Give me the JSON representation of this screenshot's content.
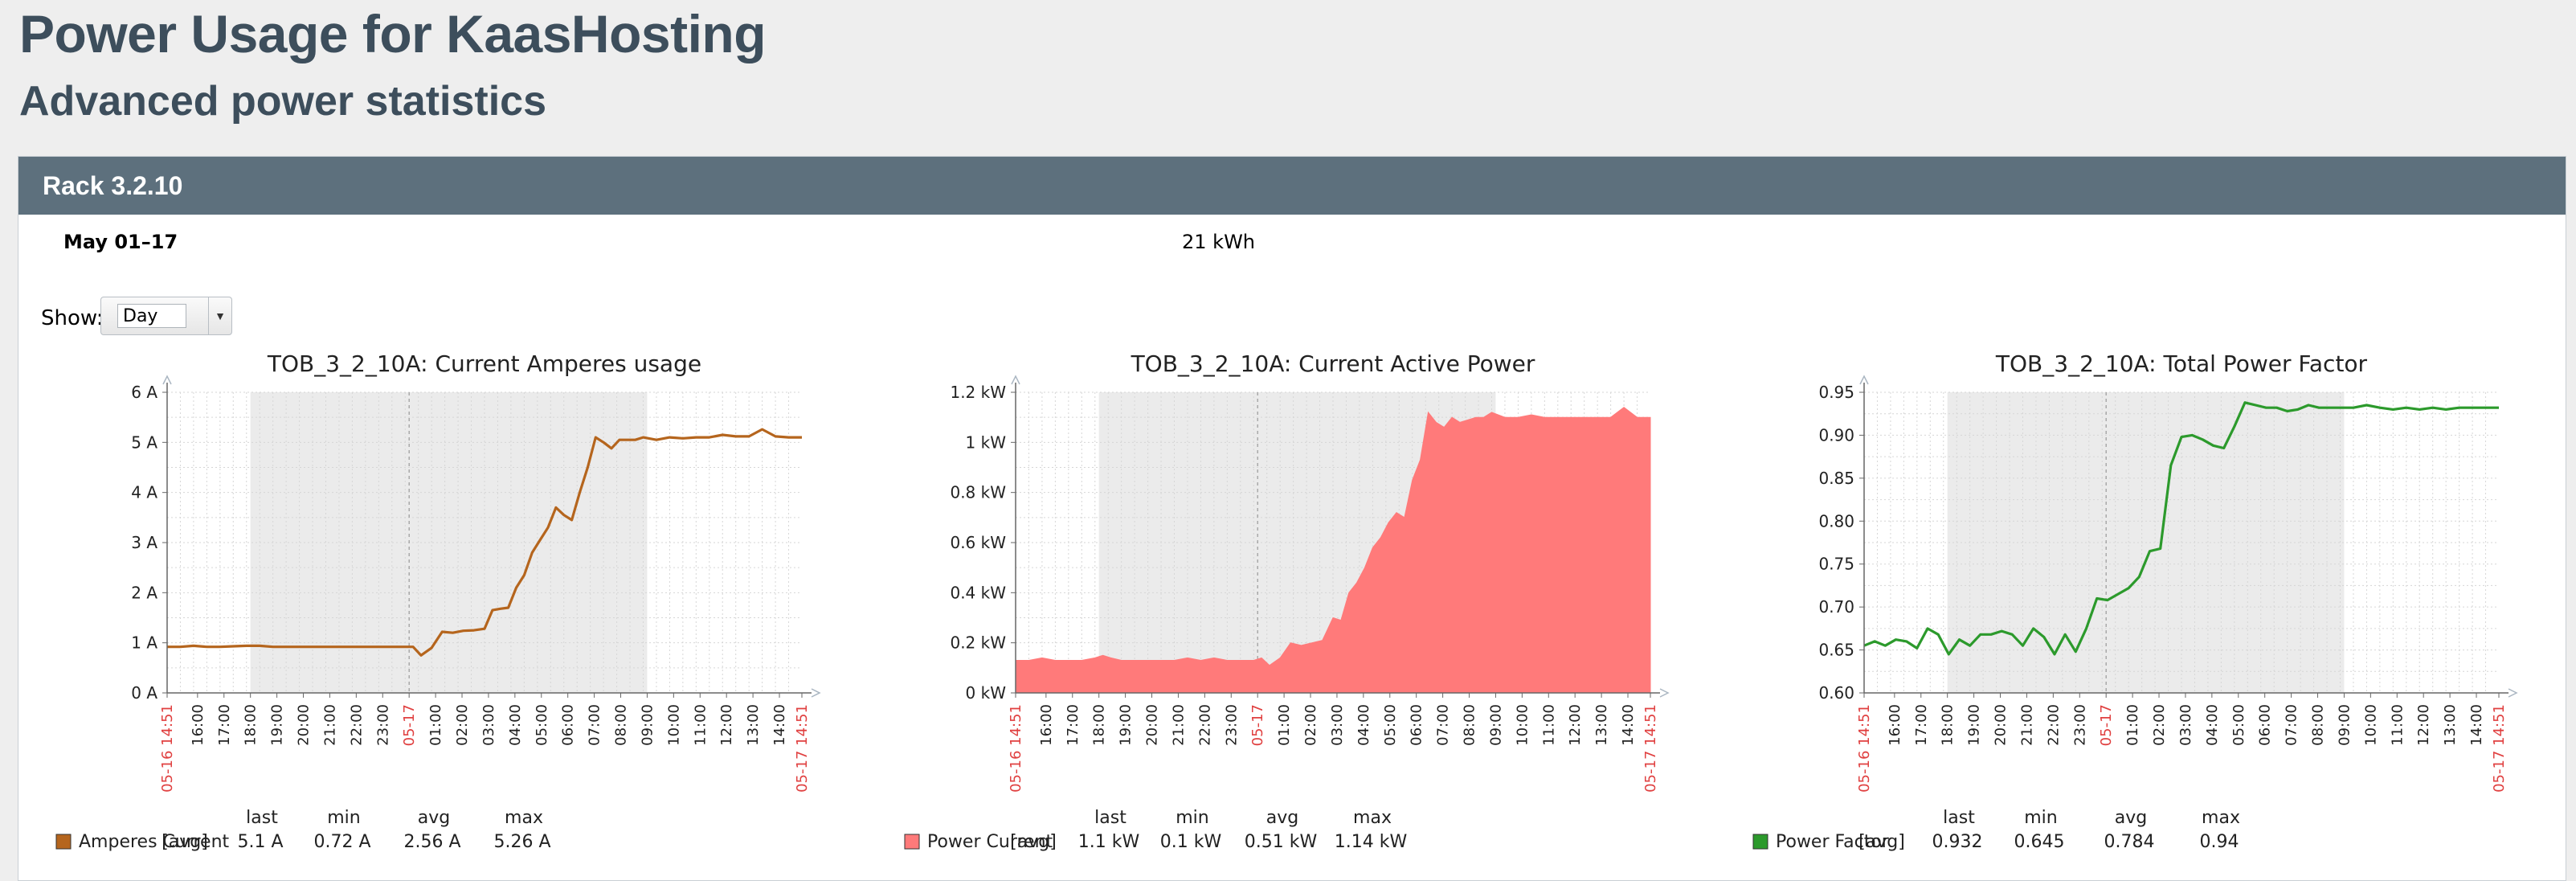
{
  "page": {
    "title": "Power Usage for KaasHosting",
    "subtitle": "Advanced power statistics"
  },
  "panel": {
    "header": "Rack 3.2.10",
    "period": "May 01–17",
    "energy": "21 kWh",
    "show_label": "Show:",
    "show_value": "Day"
  },
  "colors": {
    "amperes": "#b5651d",
    "power": "#ff7a7a",
    "power_factor": "#2c9a2c",
    "time_marker": "#e04040",
    "night_band": "#ebebeb"
  },
  "chart_data": [
    {
      "type": "line",
      "title": "TOB_3_2_10A: Current Amperes usage",
      "ylim": [
        0,
        6
      ],
      "yticks": [
        "0 A",
        "1 A",
        "2 A",
        "3 A",
        "4 A",
        "5 A",
        "6 A"
      ],
      "xticks": [
        "05-16 14:51",
        "16:00",
        "17:00",
        "18:00",
        "19:00",
        "20:00",
        "21:00",
        "22:00",
        "23:00",
        "05-17",
        "01:00",
        "02:00",
        "03:00",
        "04:00",
        "05:00",
        "06:00",
        "07:00",
        "08:00",
        "09:00",
        "10:00",
        "11:00",
        "12:00",
        "13:00",
        "14:00",
        "05-17 14:51"
      ],
      "shaded_range": [
        3.15,
        18.15
      ],
      "series": [
        {
          "name": "Amperes Current",
          "x": [
            0,
            0.5,
            1,
            1.5,
            2,
            2.5,
            3,
            3.5,
            4,
            5,
            6,
            7,
            8,
            9,
            9.3,
            9.6,
            10,
            10.4,
            10.8,
            11.2,
            11.6,
            12,
            12.3,
            12.6,
            12.9,
            13.2,
            13.5,
            13.8,
            14.1,
            14.4,
            14.7,
            15,
            15.3,
            15.6,
            15.9,
            16.2,
            16.5,
            16.8,
            17.1,
            17.4,
            17.7,
            18,
            18.5,
            19,
            19.5,
            20,
            20.5,
            21,
            21.5,
            22,
            22.5,
            23,
            23.5,
            24
          ],
          "values": [
            0.92,
            0.92,
            0.94,
            0.92,
            0.92,
            0.93,
            0.94,
            0.94,
            0.92,
            0.92,
            0.92,
            0.92,
            0.92,
            0.92,
            0.92,
            0.75,
            0.9,
            1.22,
            1.2,
            1.24,
            1.25,
            1.28,
            1.65,
            1.68,
            1.7,
            2.1,
            2.35,
            2.8,
            3.05,
            3.3,
            3.7,
            3.55,
            3.45,
            4.0,
            4.5,
            5.1,
            5.0,
            4.88,
            5.05,
            5.05,
            5.05,
            5.1,
            5.05,
            5.1,
            5.08,
            5.1,
            5.1,
            5.15,
            5.12,
            5.12,
            5.26,
            5.12,
            5.1,
            5.1
          ]
        }
      ],
      "legend": {
        "label": "Amperes Current",
        "agg": "[avg]",
        "headers": [
          "last",
          "min",
          "avg",
          "max"
        ],
        "values": [
          "5.1 A",
          "0.72 A",
          "2.56 A",
          "5.26 A"
        ]
      }
    },
    {
      "type": "area",
      "title": "TOB_3_2_10A: Current Active Power",
      "ylim": [
        0,
        1.2
      ],
      "yticks": [
        "0 kW",
        "0.2 kW",
        "0.4 kW",
        "0.6 kW",
        "0.8 kW",
        "1 kW",
        "1.2 kW"
      ],
      "xticks": [
        "05-16 14:51",
        "16:00",
        "17:00",
        "18:00",
        "19:00",
        "20:00",
        "21:00",
        "22:00",
        "23:00",
        "05-17",
        "01:00",
        "02:00",
        "03:00",
        "04:00",
        "05:00",
        "06:00",
        "07:00",
        "08:00",
        "09:00",
        "10:00",
        "11:00",
        "12:00",
        "13:00",
        "14:00",
        "05-17 14:51"
      ],
      "shaded_range": [
        3.15,
        18.15
      ],
      "series": [
        {
          "name": "Power Current",
          "x": [
            0,
            0.5,
            1,
            1.5,
            2,
            2.5,
            3,
            3.3,
            3.6,
            4,
            5,
            6,
            6.5,
            7,
            7.5,
            8,
            8.5,
            9,
            9.3,
            9.6,
            10,
            10.4,
            10.8,
            11.2,
            11.6,
            12,
            12.3,
            12.6,
            12.9,
            13.2,
            13.5,
            13.8,
            14.1,
            14.4,
            14.7,
            15,
            15.3,
            15.6,
            15.9,
            16.2,
            16.5,
            16.8,
            17.1,
            17.4,
            17.7,
            18,
            18.5,
            19,
            19.5,
            20,
            20.5,
            21,
            21.5,
            22,
            22.5,
            23,
            23.5,
            24
          ],
          "values": [
            0.13,
            0.13,
            0.14,
            0.13,
            0.13,
            0.13,
            0.14,
            0.15,
            0.14,
            0.13,
            0.13,
            0.13,
            0.14,
            0.13,
            0.14,
            0.13,
            0.13,
            0.13,
            0.14,
            0.11,
            0.14,
            0.2,
            0.19,
            0.2,
            0.21,
            0.3,
            0.29,
            0.4,
            0.44,
            0.5,
            0.58,
            0.62,
            0.68,
            0.72,
            0.7,
            0.85,
            0.93,
            1.12,
            1.08,
            1.06,
            1.1,
            1.08,
            1.09,
            1.1,
            1.1,
            1.12,
            1.1,
            1.1,
            1.11,
            1.1,
            1.1,
            1.1,
            1.1,
            1.1,
            1.1,
            1.14,
            1.1,
            1.1
          ]
        }
      ],
      "legend": {
        "label": "Power Current",
        "agg": "[avg]",
        "headers": [
          "last",
          "min",
          "avg",
          "max"
        ],
        "values": [
          "1.1 kW",
          "0.1 kW",
          "0.51 kW",
          "1.14 kW"
        ]
      }
    },
    {
      "type": "line",
      "title": "TOB_3_2_10A: Total Power Factor",
      "ylim": [
        0.6,
        0.95
      ],
      "yticks": [
        "0.60",
        "0.65",
        "0.70",
        "0.75",
        "0.80",
        "0.85",
        "0.90",
        "0.95"
      ],
      "xticks": [
        "05-16 14:51",
        "16:00",
        "17:00",
        "18:00",
        "19:00",
        "20:00",
        "21:00",
        "22:00",
        "23:00",
        "05-17",
        "01:00",
        "02:00",
        "03:00",
        "04:00",
        "05:00",
        "06:00",
        "07:00",
        "08:00",
        "09:00",
        "10:00",
        "11:00",
        "12:00",
        "13:00",
        "14:00",
        "05-17 14:51"
      ],
      "shaded_range": [
        3.15,
        18.15
      ],
      "series": [
        {
          "name": "Power Factor",
          "x": [
            0,
            0.4,
            0.8,
            1.2,
            1.6,
            2,
            2.4,
            2.8,
            3.2,
            3.6,
            4,
            4.4,
            4.8,
            5.2,
            5.6,
            6,
            6.4,
            6.8,
            7.2,
            7.6,
            8,
            8.4,
            8.8,
            9.2,
            9.6,
            10,
            10.4,
            10.8,
            11.2,
            11.6,
            12,
            12.4,
            12.8,
            13.2,
            13.6,
            14,
            14.4,
            14.8,
            15.2,
            15.6,
            16,
            16.4,
            16.8,
            17.2,
            17.6,
            18,
            18.5,
            19,
            19.5,
            20,
            20.5,
            21,
            21.5,
            22,
            22.5,
            23,
            23.5,
            24
          ],
          "values": [
            0.655,
            0.66,
            0.655,
            0.662,
            0.66,
            0.652,
            0.675,
            0.668,
            0.645,
            0.662,
            0.655,
            0.668,
            0.668,
            0.672,
            0.668,
            0.655,
            0.675,
            0.665,
            0.645,
            0.668,
            0.648,
            0.675,
            0.71,
            0.708,
            0.715,
            0.722,
            0.735,
            0.765,
            0.768,
            0.865,
            0.898,
            0.9,
            0.895,
            0.888,
            0.885,
            0.91,
            0.938,
            0.935,
            0.932,
            0.932,
            0.928,
            0.93,
            0.935,
            0.932,
            0.932,
            0.932,
            0.932,
            0.935,
            0.932,
            0.93,
            0.932,
            0.93,
            0.932,
            0.93,
            0.932,
            0.932,
            0.932,
            0.932
          ]
        }
      ],
      "legend": {
        "label": "Power Factor",
        "agg": "[avg]",
        "headers": [
          "last",
          "min",
          "avg",
          "max"
        ],
        "values": [
          "0.932",
          "0.645",
          "0.784",
          "0.94"
        ]
      }
    }
  ]
}
